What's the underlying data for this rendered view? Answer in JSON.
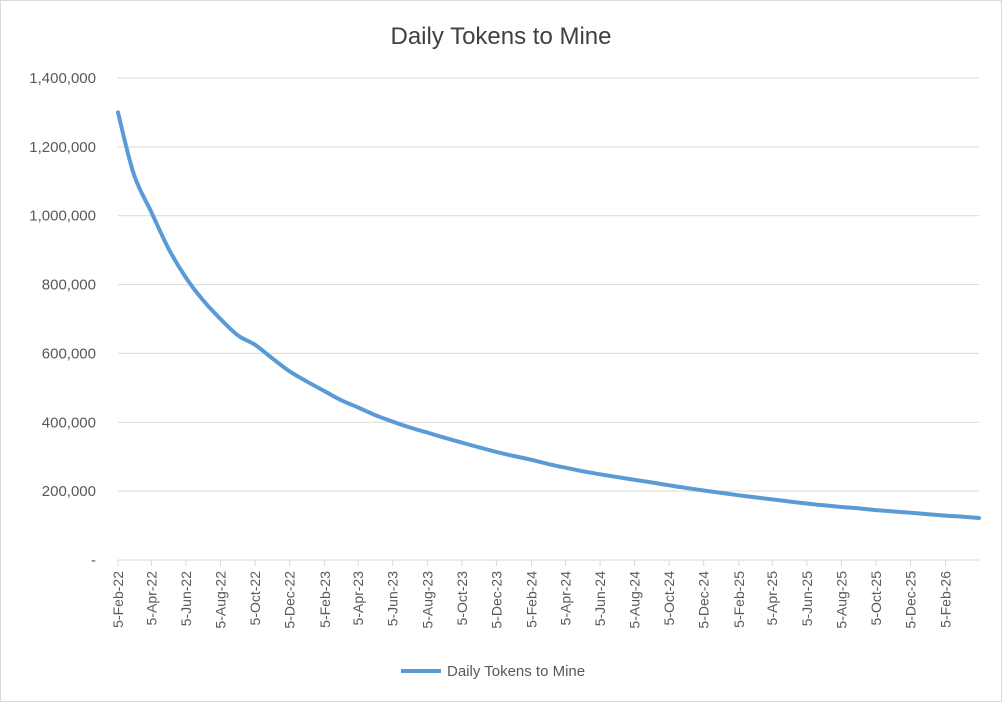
{
  "chart_data": {
    "type": "line",
    "title": "Daily Tokens to Mine",
    "xlabel": "",
    "ylabel": "",
    "ylim": [
      0,
      1400000
    ],
    "yticks": [
      0,
      200000,
      400000,
      600000,
      800000,
      1000000,
      1200000,
      1400000
    ],
    "ytick_labels": [
      "-",
      "200,000",
      "400,000",
      "600,000",
      "800,000",
      "1,000,000",
      "1,200,000",
      "1,400,000"
    ],
    "x_tick_labels": [
      "5-Feb-22",
      "5-Apr-22",
      "5-Jun-22",
      "5-Aug-22",
      "5-Oct-22",
      "5-Dec-22",
      "5-Feb-23",
      "5-Apr-23",
      "5-Jun-23",
      "5-Aug-23",
      "5-Oct-23",
      "5-Dec-23",
      "5-Feb-24",
      "5-Apr-24",
      "5-Jun-24",
      "5-Aug-24",
      "5-Oct-24",
      "5-Dec-24",
      "5-Feb-25",
      "5-Apr-25",
      "5-Jun-25",
      "5-Aug-25",
      "5-Oct-25",
      "5-Dec-25",
      "5-Feb-26"
    ],
    "xlim": [
      "2022-02-05",
      "2026-04-05"
    ],
    "grid": true,
    "legend_position": "bottom",
    "series": [
      {
        "name": "Daily Tokens to Mine",
        "color": "#5b9bd5",
        "x": [
          "2022-02-05",
          "2022-03-05",
          "2022-04-05",
          "2022-05-05",
          "2022-06-05",
          "2022-07-05",
          "2022-08-05",
          "2022-09-05",
          "2022-10-05",
          "2022-11-05",
          "2022-12-05",
          "2023-01-05",
          "2023-02-05",
          "2023-03-05",
          "2023-04-05",
          "2023-05-05",
          "2023-06-05",
          "2023-07-05",
          "2023-08-05",
          "2023-09-05",
          "2023-10-05",
          "2023-11-05",
          "2023-12-05",
          "2024-01-05",
          "2024-02-05",
          "2024-03-05",
          "2024-04-05",
          "2024-05-05",
          "2024-06-05",
          "2024-07-05",
          "2024-08-05",
          "2024-09-05",
          "2024-10-05",
          "2024-11-05",
          "2024-12-05",
          "2025-01-05",
          "2025-02-05",
          "2025-03-05",
          "2025-04-05",
          "2025-05-05",
          "2025-06-05",
          "2025-07-05",
          "2025-08-05",
          "2025-09-05",
          "2025-10-05",
          "2025-11-05",
          "2025-12-05",
          "2026-01-05",
          "2026-02-05",
          "2026-03-05",
          "2026-04-05"
        ],
        "values": [
          1300000,
          1120000,
          1010000,
          905000,
          820000,
          755000,
          700000,
          652000,
          625000,
          585000,
          548000,
          518000,
          490000,
          465000,
          443000,
          421000,
          402000,
          385000,
          370000,
          355000,
          341000,
          327000,
          314000,
          302000,
          291000,
          279000,
          268000,
          258000,
          249000,
          241000,
          233000,
          225000,
          217000,
          209000,
          202000,
          195000,
          188000,
          182000,
          176000,
          170000,
          164000,
          159000,
          154000,
          150000,
          145000,
          141000,
          137000,
          133000,
          129000,
          126000,
          122000
        ]
      }
    ]
  }
}
